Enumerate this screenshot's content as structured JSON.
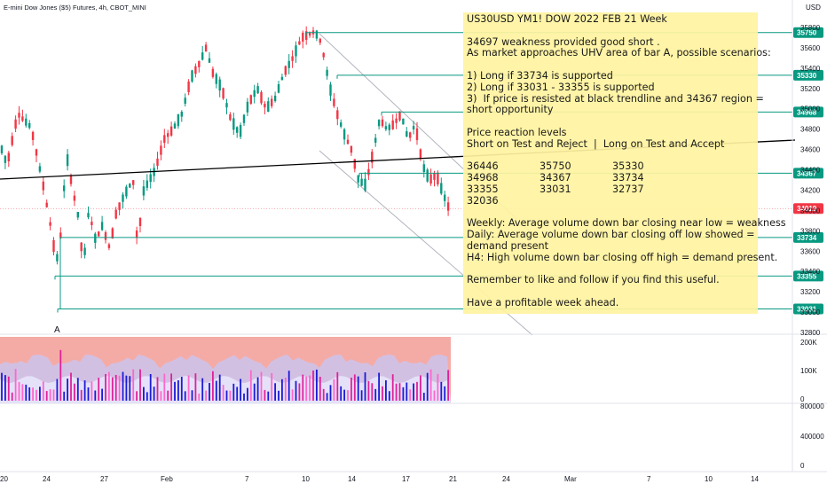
{
  "header": {
    "symbol_line": "E-mini Dow Jones ($5) Futures, 4h, CBOT_MINI",
    "currency": "USD"
  },
  "price_axis": {
    "ticks": [
      "35800",
      "35600",
      "35400",
      "35200",
      "35000",
      "34800",
      "34600",
      "34400",
      "34200",
      "34000",
      "33800",
      "33600",
      "33400",
      "33200",
      "33000",
      "32800"
    ],
    "tick_values": [
      35800,
      35600,
      35400,
      35200,
      35000,
      34800,
      34600,
      34400,
      34200,
      34000,
      33800,
      33600,
      33400,
      33200,
      33000,
      32800
    ]
  },
  "level_tags": [
    {
      "label": "35750",
      "value": 35750,
      "color": "#089981"
    },
    {
      "label": "35330",
      "value": 35330,
      "color": "#089981"
    },
    {
      "label": "34968",
      "value": 34968,
      "color": "#089981"
    },
    {
      "label": "34367",
      "value": 34367,
      "color": "#089981"
    },
    {
      "label": "34019",
      "value": 34019,
      "color": "#f23645"
    },
    {
      "label": "33734",
      "value": 33734,
      "color": "#089981"
    },
    {
      "label": "33355",
      "value": 33355,
      "color": "#089981"
    },
    {
      "label": "33031",
      "value": 33031,
      "color": "#089981"
    }
  ],
  "volume_axis": {
    "ticks": [
      "200K",
      "100K",
      "0"
    ]
  },
  "lower_axis": {
    "ticks": [
      "800000",
      "400000",
      "0"
    ]
  },
  "time_axis": {
    "labels": [
      "20",
      "24",
      "27",
      "Feb",
      "7",
      "10",
      "14",
      "17",
      "21",
      "24",
      "Mar",
      "7",
      "10",
      "14"
    ]
  },
  "bar_marker": "A",
  "note": {
    "title": "US30USD YM1! DOW 2022 FEB 21 Week",
    "lines": [
      "",
      "34697 weakness provided good short .",
      "As market approaches UHV area of bar A, possible scenarios:",
      "",
      "1) Long if 33734 is supported",
      "2) Long if 33031 - 33355 is supported",
      "3)  If price is resisted at black trendline and 34367 region =",
      "short opportunity",
      "",
      "Price reaction levels",
      "Short on Test and Reject  |  Long on Test and Accept",
      ""
    ],
    "table": [
      [
        "36446",
        "35750",
        "35330"
      ],
      [
        "34968",
        "34367",
        "33734"
      ],
      [
        "33355",
        "33031",
        "32737"
      ],
      [
        "32036",
        "",
        ""
      ]
    ],
    "lines2": [
      "",
      "Weekly: Average volume down bar closing near low = weakness",
      "Daily: Average volume down bar closing off low showed =",
      "demand present",
      "H4: High volume down bar closing off high = demand present.",
      "",
      "Remember to like and follow if you find this useful.",
      "",
      "Have a profitable week ahead."
    ]
  },
  "colors": {
    "up": "#089981",
    "down": "#f23645",
    "level_line": "#089981",
    "trendline": "#000000",
    "channel": "#b2b5be",
    "volume_band": "#f4a6a0"
  }
}
